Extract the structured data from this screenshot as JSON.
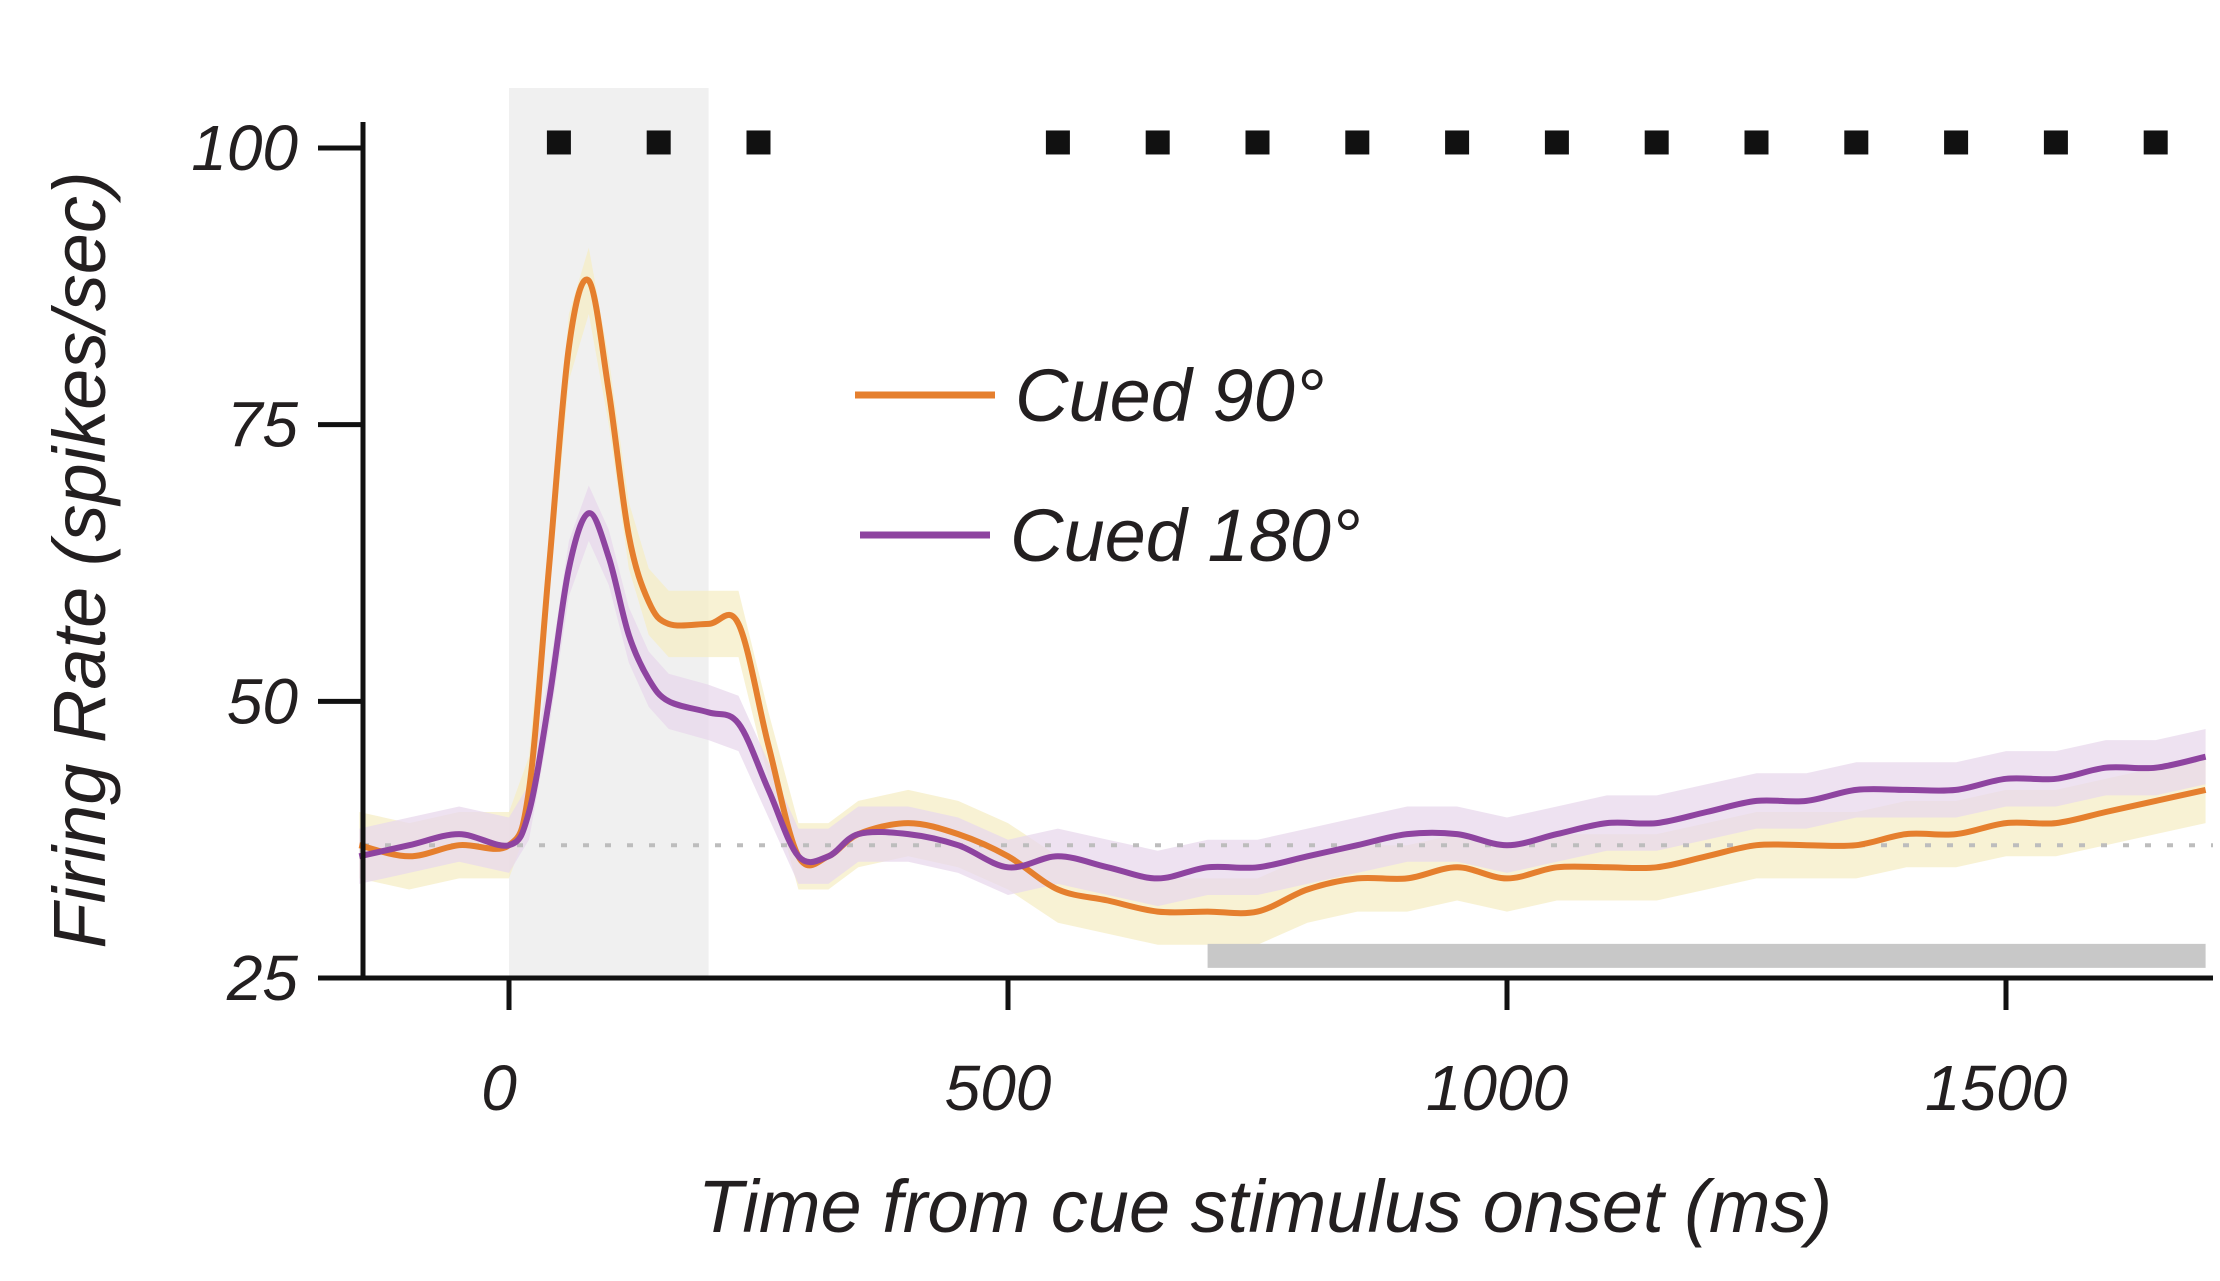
{
  "chart_data": {
    "type": "line",
    "title": "",
    "xlabel": "Time from cue stimulus onset (ms)",
    "ylabel": "Firing Rate (spikes/sec)",
    "xlim": [
      -150,
      1700
    ],
    "ylim": [
      25,
      103
    ],
    "xticks": [
      {
        "value": 0,
        "label": "0"
      },
      {
        "value": 500,
        "label": "500"
      },
      {
        "value": 1000,
        "label": "1000"
      },
      {
        "value": 1500,
        "label": "1500"
      }
    ],
    "yticks": [
      {
        "value": 25,
        "label": "25"
      },
      {
        "value": 50,
        "label": "50"
      },
      {
        "value": 75,
        "label": "75"
      },
      {
        "value": 100,
        "label": "100"
      }
    ],
    "grid": false,
    "legend_position": "center",
    "shaded_region": {
      "x_start": 0,
      "x_end": 200,
      "color": "#f0f0f0"
    },
    "baseline": {
      "y": 37,
      "color": "#bdbdbd",
      "style": "dotted"
    },
    "significance_bar": {
      "x_start": 700,
      "x_end": 1700,
      "y": 27,
      "color": "#c8c8c8"
    },
    "significance_markers": {
      "y": 100.5,
      "x": [
        50,
        150,
        250,
        550,
        650,
        750,
        850,
        950,
        1050,
        1150,
        1250,
        1350,
        1450,
        1550,
        1650
      ],
      "color": "#111111"
    },
    "series": [
      {
        "name": "Cued 90°",
        "color": "#e57f2e",
        "band_color": "#f6edc6",
        "x": [
          -150,
          -100,
          -50,
          0,
          20,
          40,
          60,
          80,
          100,
          120,
          140,
          160,
          200,
          230,
          260,
          290,
          320,
          350,
          400,
          450,
          500,
          550,
          600,
          650,
          700,
          750,
          800,
          850,
          900,
          950,
          1000,
          1050,
          1100,
          1150,
          1200,
          1250,
          1300,
          1350,
          1400,
          1450,
          1500,
          1550,
          1600,
          1650,
          1700
        ],
        "y": [
          37,
          36,
          37,
          37,
          42,
          62,
          82,
          88,
          78,
          65,
          59,
          57,
          57,
          57,
          46,
          36,
          36,
          38,
          39,
          38,
          36,
          33,
          32,
          31,
          31,
          31,
          33,
          34,
          34,
          35,
          34,
          35,
          35,
          35,
          36,
          37,
          37,
          37,
          38,
          38,
          39,
          39,
          40,
          41,
          42
        ],
        "band": 3
      },
      {
        "name": "Cued 180°",
        "color": "#8e44a0",
        "band_color": "#e8d8ec",
        "x": [
          -150,
          -100,
          -50,
          0,
          20,
          40,
          60,
          80,
          100,
          120,
          140,
          160,
          200,
          230,
          260,
          290,
          320,
          350,
          400,
          450,
          500,
          550,
          600,
          650,
          700,
          750,
          800,
          850,
          900,
          950,
          1000,
          1050,
          1100,
          1150,
          1200,
          1250,
          1300,
          1350,
          1400,
          1450,
          1500,
          1550,
          1600,
          1650,
          1700
        ],
        "y": [
          36,
          37,
          38,
          37,
          40,
          50,
          62,
          67,
          63,
          56,
          52,
          50,
          49,
          48,
          42,
          36,
          36,
          38,
          38,
          37,
          35,
          36,
          35,
          34,
          35,
          35,
          36,
          37,
          38,
          38,
          37,
          38,
          39,
          39,
          40,
          41,
          41,
          42,
          42,
          42,
          43,
          43,
          44,
          44,
          45
        ],
        "band": 2.5
      }
    ]
  }
}
